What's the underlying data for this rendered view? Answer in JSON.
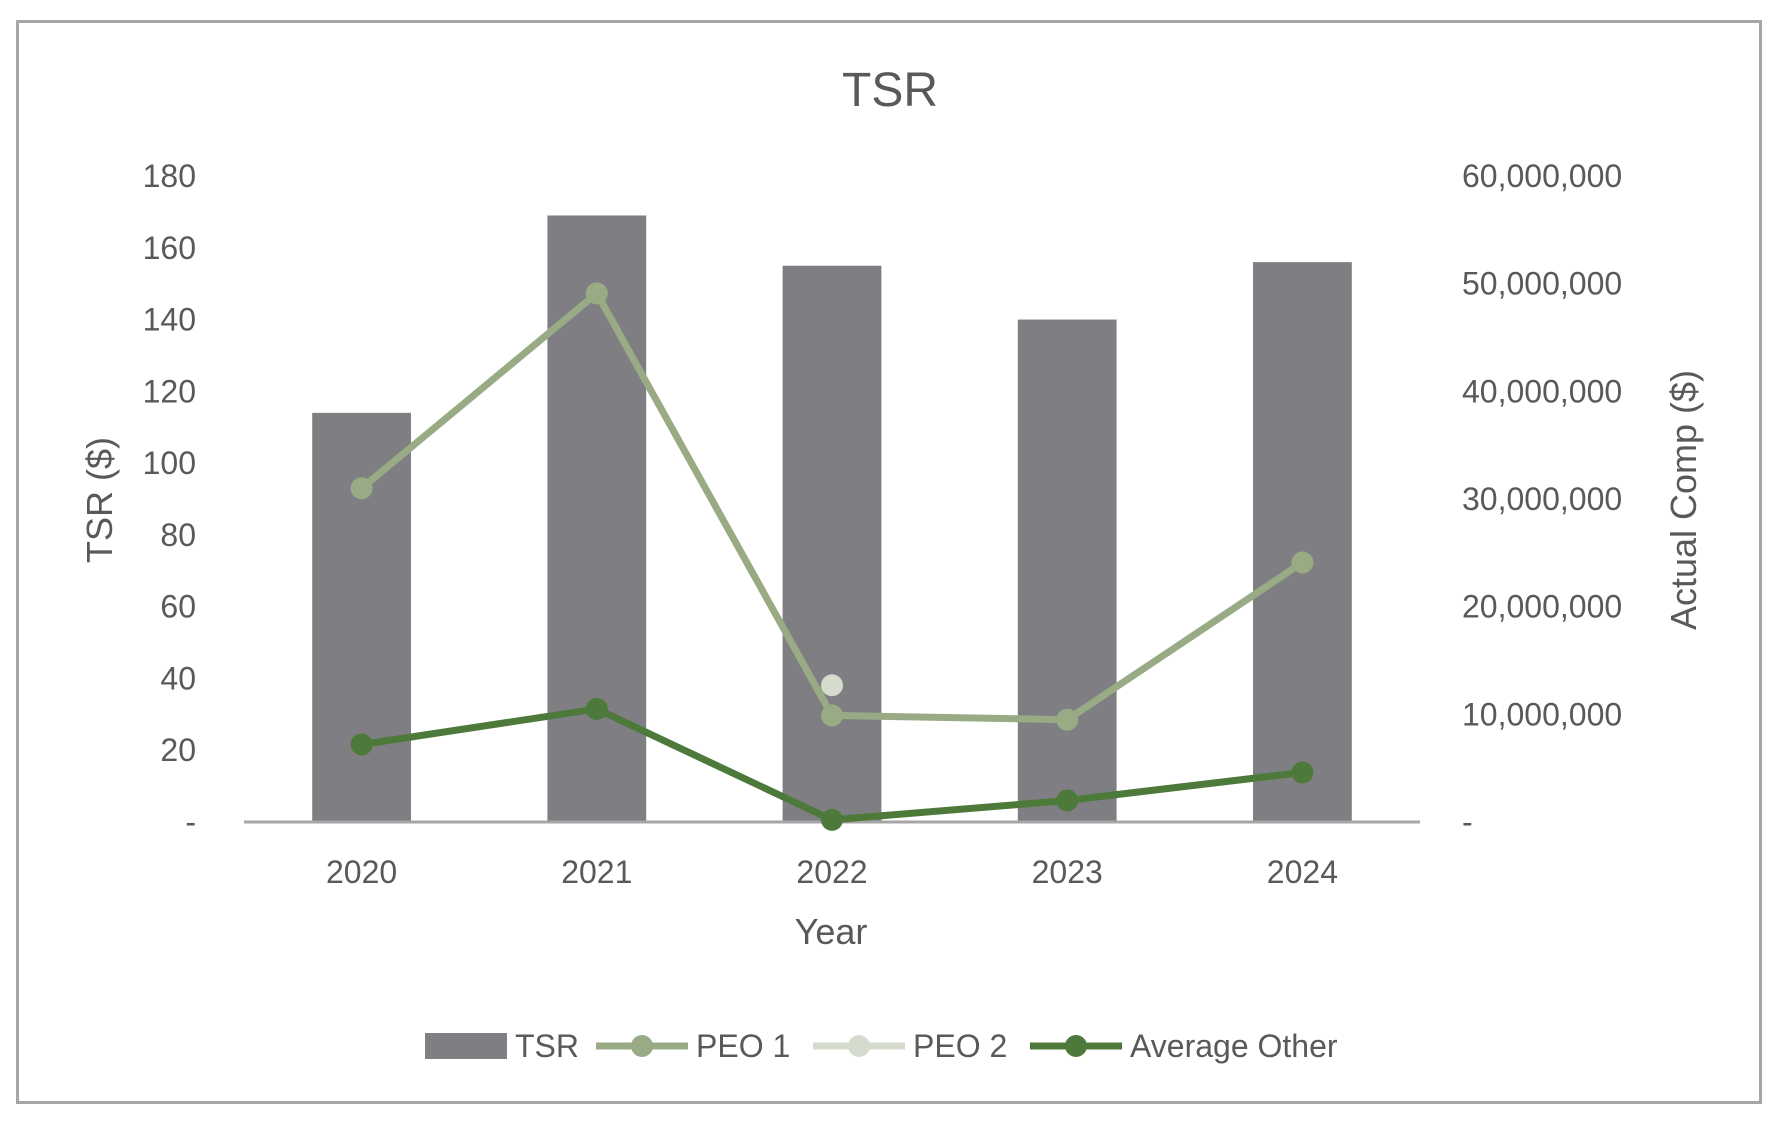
{
  "chart_data": {
    "type": "bar",
    "title": "TSR",
    "xlabel": "Year",
    "ylabel": "TSR ($)",
    "y2label": "Actual Comp ($)",
    "categories": [
      "2020",
      "2021",
      "2022",
      "2023",
      "2024"
    ],
    "ylim": [
      0,
      180
    ],
    "y2lim": [
      0,
      60000000
    ],
    "y_ticks": [
      "-",
      "20",
      "40",
      "60",
      "80",
      "100",
      "120",
      "140",
      "160",
      "180"
    ],
    "y2_ticks": [
      "-",
      "10,000,000",
      "20,000,000",
      "30,000,000",
      "40,000,000",
      "50,000,000",
      "60,000,000"
    ],
    "grid": false,
    "legend_position": "bottom",
    "series": [
      {
        "name": "TSR",
        "type": "bar",
        "axis": "left",
        "color": "#7f7f83",
        "values": [
          114,
          169,
          155,
          140,
          156
        ]
      },
      {
        "name": "PEO 1",
        "type": "line",
        "axis": "right",
        "color": "#98ab84",
        "values": [
          31000000,
          49100000,
          9900000,
          9500000,
          24100000
        ]
      },
      {
        "name": "PEO 2",
        "type": "line",
        "axis": "right",
        "color": "#d5dccd",
        "values": [
          null,
          null,
          12700000,
          null,
          null
        ]
      },
      {
        "name": "Average Other",
        "type": "line",
        "axis": "right",
        "color": "#4d7a3a",
        "values": [
          7200000,
          10500000,
          200000,
          2000000,
          4600000
        ]
      }
    ]
  }
}
